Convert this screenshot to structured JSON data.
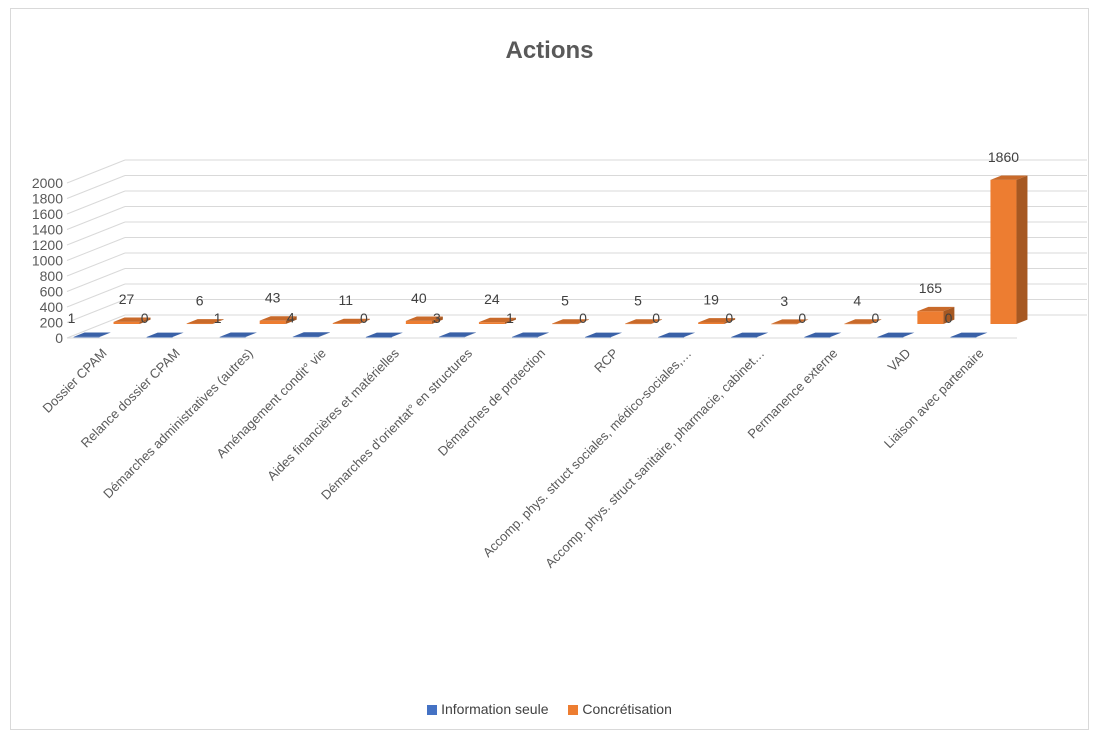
{
  "chart_data": {
    "type": "bar",
    "title": "Actions",
    "categories": [
      "Dossier CPAM",
      "Relance dossier CPAM",
      "Démarches administratives (autres)",
      "Aménagement condit° vie",
      "Aides financières et matérielles",
      "Démarches d'orientat° en structures",
      "Démarches de protection",
      "RCP",
      "Accomp. phys. struct sociales, médico-sociales,…",
      "Accomp. phys. struct sanitaire, pharmacie, cabinet…",
      "Permanence externe",
      "VAD",
      "Liaison avec partenaire"
    ],
    "series": [
      {
        "name": "Information seule",
        "values": [
          1,
          0,
          1,
          4,
          0,
          3,
          1,
          0,
          0,
          0,
          0,
          0,
          0
        ]
      },
      {
        "name": "Concrétisation",
        "values": [
          27,
          6,
          43,
          11,
          40,
          24,
          5,
          5,
          19,
          3,
          4,
          165,
          1860
        ]
      }
    ],
    "yticks": [
      0,
      200,
      400,
      600,
      800,
      1000,
      1200,
      1400,
      1600,
      1800,
      2000
    ],
    "ylim": [
      0,
      2000
    ],
    "legend_position": "bottom",
    "colors": {
      "Information seule": "#4472C4",
      "Concrétisation": "#ED7D31"
    }
  }
}
